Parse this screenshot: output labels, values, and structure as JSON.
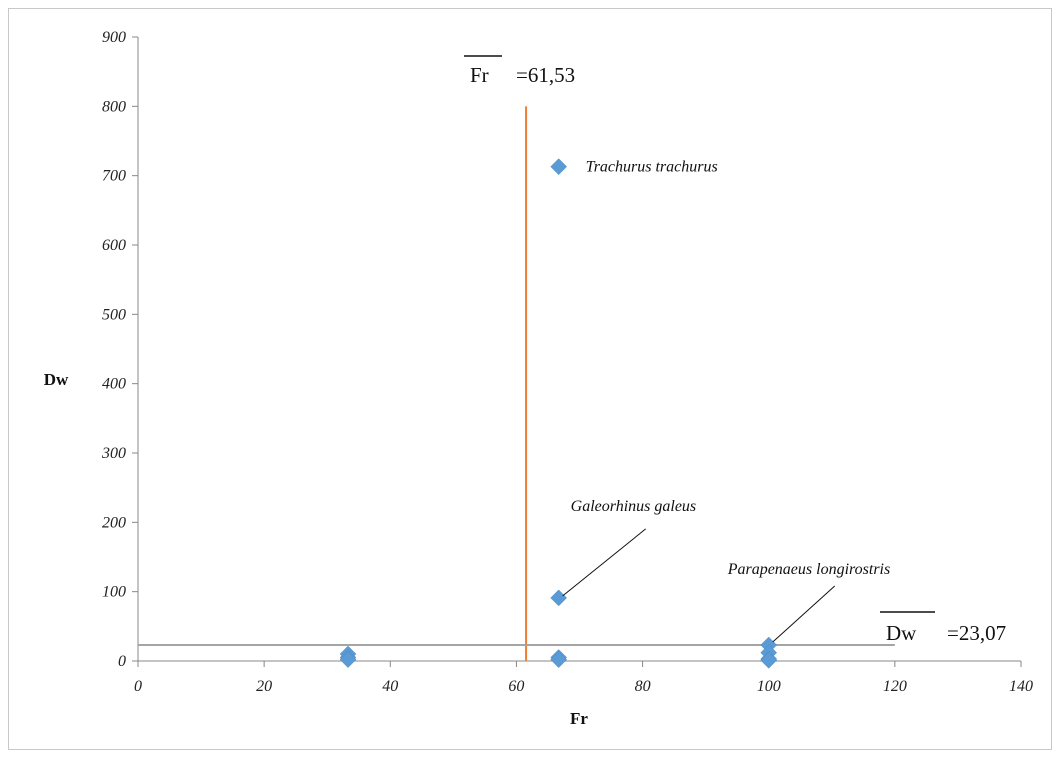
{
  "chart_data": {
    "type": "scatter",
    "xlabel": "Fr",
    "ylabel": "Dw",
    "xlim": [
      0,
      140
    ],
    "ylim": [
      0,
      900
    ],
    "x_ticks": [
      "0",
      "20",
      "40",
      "60",
      "80",
      "100",
      "120",
      "140"
    ],
    "y_ticks": [
      "0",
      "100",
      "200",
      "300",
      "400",
      "500",
      "600",
      "700",
      "800",
      "900"
    ],
    "grid": false,
    "marker_color": "#5b9bd5",
    "points": [
      {
        "x": 33.3,
        "y": 10
      },
      {
        "x": 33.3,
        "y": 5
      },
      {
        "x": 33.3,
        "y": 2
      },
      {
        "x": 66.7,
        "y": 713,
        "label": "Trachurus trachurus"
      },
      {
        "x": 66.7,
        "y": 91,
        "label": "Galeorhinus galeus"
      },
      {
        "x": 66.7,
        "y": 5
      },
      {
        "x": 66.7,
        "y": 2
      },
      {
        "x": 100,
        "y": 23,
        "label": "Parapenaeus longirostris"
      },
      {
        "x": 100,
        "y": 12
      },
      {
        "x": 100,
        "y": 3
      },
      {
        "x": 100,
        "y": 1
      }
    ],
    "mean_lines": {
      "fr": {
        "name": "Fr",
        "text": "=61,53",
        "value": 61.53,
        "ymax": 800,
        "color": "#ed7d31"
      },
      "dw": {
        "name": "Dw",
        "text": "=23,07",
        "value": 23.07,
        "xmax": 120,
        "color": "#a5a5a5"
      }
    }
  }
}
